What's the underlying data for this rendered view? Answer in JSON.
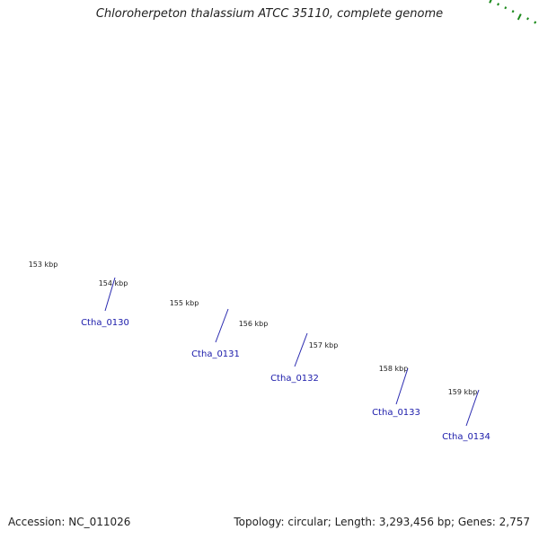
{
  "title": "Chloroherpeton thalassium ATCC 35110, complete genome",
  "footer": {
    "accession": "Accession: NC_011026",
    "summary": "Topology: circular; Length: 3,293,456 bp; Genes: 2,757"
  },
  "colors": {
    "backbone": "#8a8a8a",
    "feature_forward": "#1010e6",
    "feature_reverse": "#00e5e5",
    "feature_edge": "#3d8fc9",
    "tick": "#1a8a1a",
    "label_line": "#2a2ab0",
    "gene_label": "#1a1aaa"
  },
  "ticks": {
    "labels": [
      "153 kbp",
      "154 kbp",
      "155 kbp",
      "156 kbp",
      "157 kbp",
      "158 kbp",
      "159 kbp"
    ]
  },
  "genes": [
    {
      "name": "Ctha_0130"
    },
    {
      "name": "Ctha_0131"
    },
    {
      "name": "Ctha_0132"
    },
    {
      "name": "Ctha_0133"
    },
    {
      "name": "Ctha_0134"
    }
  ]
}
